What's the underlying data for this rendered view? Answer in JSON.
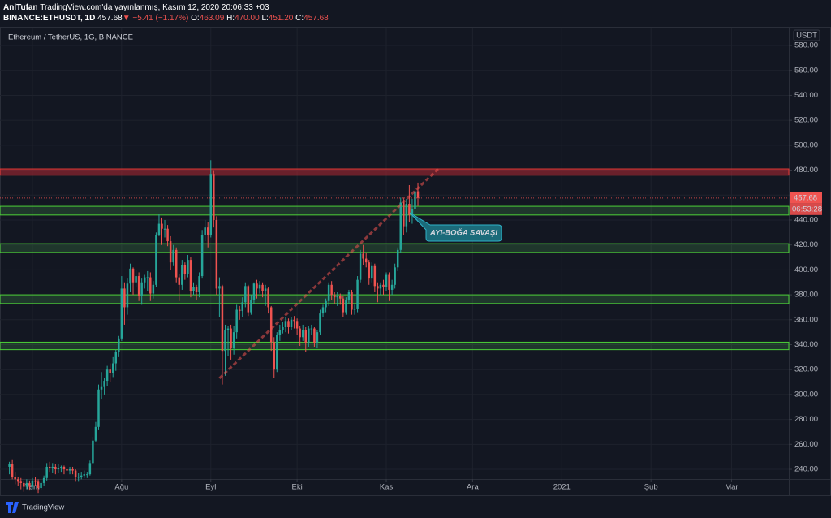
{
  "header": {
    "publisher_name": "AnlTufan",
    "publisher_text": "TradingView.com'da yayınlanmış, Kasım 12, 2020 20:06:33 +03",
    "symbol": "BINANCE:ETHUSDT, 1D",
    "last": "457.68",
    "arrow": "▼",
    "change": "−5.41 (−1.17%)",
    "ohlc": [
      {
        "label": "O:",
        "value": "463.09"
      },
      {
        "label": "H:",
        "value": "470.00"
      },
      {
        "label": "L:",
        "value": "451.20"
      },
      {
        "label": "C:",
        "value": "457.68"
      }
    ]
  },
  "footer": {
    "brand": "TradingView"
  },
  "chart_data": {
    "type": "candlestick",
    "title": "Ethereum / TetherUS, 1G, BINANCE",
    "y_unit": "USDT",
    "up_color": "#26a69a",
    "down_color": "#ef5350",
    "grid": true,
    "x": [
      0,
      1,
      2,
      3,
      4,
      5,
      6,
      7,
      8,
      9,
      10,
      11,
      12,
      13,
      14,
      15,
      16,
      17,
      18,
      19,
      20,
      21,
      22,
      23,
      24,
      25,
      26,
      27,
      28,
      29,
      30,
      31,
      32,
      33,
      34,
      35,
      36,
      37,
      38,
      39,
      40,
      41,
      42,
      43,
      44,
      45,
      46,
      47,
      48,
      49,
      50,
      51,
      52,
      53,
      54,
      55,
      56,
      57,
      58,
      59,
      60,
      61,
      62,
      63,
      64,
      65,
      66,
      67,
      68,
      69,
      70,
      71,
      72,
      73,
      74,
      75,
      76,
      77,
      78,
      79,
      80,
      81,
      82,
      83,
      84,
      85,
      86,
      87,
      88,
      89,
      90,
      91,
      92,
      93,
      94,
      95,
      96,
      97,
      98,
      99,
      100,
      101,
      102,
      103,
      104,
      105,
      106,
      107,
      108,
      109,
      110,
      111,
      112,
      113,
      114,
      115,
      116,
      117,
      118,
      119,
      120,
      121,
      122,
      123,
      124,
      125,
      126,
      127,
      128,
      129,
      130,
      131,
      132,
      133,
      134,
      135,
      136,
      137,
      138,
      139,
      140,
      141,
      142
    ],
    "open": [
      242,
      244,
      234,
      232,
      230,
      229,
      226,
      229,
      226,
      231,
      230,
      225,
      229,
      233,
      242,
      241,
      242,
      240,
      241,
      242,
      240,
      239,
      240,
      239,
      234,
      234,
      235,
      236,
      236,
      245,
      263,
      274,
      304,
      306,
      311,
      320,
      317,
      325,
      334,
      345,
      385,
      370,
      389,
      401,
      390,
      395,
      379,
      390,
      394,
      394,
      381,
      388,
      428,
      437,
      433,
      433,
      423,
      406,
      416,
      394,
      388,
      404,
      397,
      408,
      383,
      386,
      382,
      395,
      428,
      434,
      428,
      477,
      440,
      385,
      387,
      335,
      352,
      353,
      337,
      350,
      368,
      367,
      374,
      387,
      366,
      376,
      389,
      385,
      388,
      383,
      385,
      370,
      342,
      320,
      348,
      352,
      354,
      359,
      354,
      360,
      359,
      353,
      346,
      352,
      341,
      353,
      353,
      341,
      350,
      365,
      370,
      375,
      388,
      380,
      378,
      379,
      377,
      366,
      376,
      382,
      368,
      369,
      392,
      413,
      409,
      406,
      393,
      403,
      387,
      385,
      388,
      386,
      396,
      384,
      388,
      402,
      416,
      454,
      435,
      453,
      444,
      449,
      463.09
    ],
    "high": [
      246,
      248,
      238,
      234,
      233,
      231,
      232,
      231,
      233,
      234,
      232,
      231,
      235,
      245,
      246,
      245,
      244,
      244,
      243,
      243,
      242,
      242,
      242,
      240,
      237,
      238,
      239,
      238,
      247,
      266,
      278,
      308,
      318,
      313,
      323,
      325,
      330,
      336,
      347,
      395,
      390,
      393,
      405,
      402,
      400,
      398,
      393,
      396,
      399,
      398,
      391,
      430,
      445,
      442,
      440,
      436,
      427,
      420,
      418,
      397,
      408,
      406,
      412,
      410,
      390,
      388,
      398,
      432,
      440,
      438,
      488,
      480,
      443,
      394,
      388,
      356,
      355,
      356,
      355,
      372,
      371,
      378,
      390,
      388,
      380,
      390,
      392,
      391,
      390,
      388,
      386,
      371,
      346,
      350,
      356,
      358,
      362,
      361,
      362,
      363,
      361,
      355,
      356,
      354,
      355,
      356,
      354,
      352,
      368,
      372,
      377,
      390,
      391,
      382,
      382,
      381,
      379,
      378,
      384,
      384,
      372,
      395,
      416,
      420,
      414,
      408,
      406,
      405,
      390,
      390,
      392,
      398,
      398,
      392,
      405,
      418,
      458,
      458,
      457,
      468,
      457,
      467,
      470.0
    ],
    "low": [
      236,
      232,
      228,
      227,
      224,
      222,
      224,
      223,
      224,
      227,
      221,
      223,
      227,
      231,
      238,
      237,
      236,
      237,
      238,
      236,
      236,
      236,
      236,
      230,
      230,
      232,
      233,
      233,
      235,
      244,
      262,
      272,
      296,
      300,
      307,
      310,
      314,
      319,
      330,
      343,
      356,
      364,
      382,
      380,
      386,
      375,
      372,
      385,
      383,
      375,
      377,
      386,
      427,
      420,
      426,
      419,
      400,
      403,
      390,
      375,
      384,
      392,
      394,
      378,
      380,
      376,
      378,
      393,
      423,
      418,
      426,
      434,
      380,
      362,
      308,
      315,
      331,
      328,
      332,
      345,
      360,
      362,
      370,
      363,
      364,
      373,
      377,
      381,
      378,
      371,
      365,
      335,
      313,
      318,
      343,
      349,
      350,
      349,
      352,
      353,
      348,
      339,
      343,
      334,
      338,
      348,
      338,
      337,
      348,
      362,
      366,
      371,
      376,
      373,
      371,
      372,
      362,
      364,
      373,
      364,
      364,
      366,
      390,
      404,
      402,
      388,
      390,
      382,
      374,
      380,
      380,
      383,
      375,
      380,
      385,
      399,
      414,
      428,
      430,
      438,
      437,
      445,
      451.2
    ],
    "close": [
      244,
      234,
      232,
      230,
      229,
      226,
      229,
      226,
      231,
      230,
      225,
      229,
      233,
      242,
      241,
      242,
      240,
      241,
      242,
      240,
      239,
      240,
      239,
      234,
      234,
      235,
      236,
      236,
      245,
      263,
      274,
      304,
      306,
      311,
      320,
      317,
      325,
      334,
      345,
      385,
      370,
      389,
      401,
      390,
      395,
      379,
      390,
      394,
      394,
      381,
      388,
      428,
      437,
      433,
      433,
      423,
      406,
      416,
      394,
      388,
      404,
      397,
      408,
      383,
      386,
      382,
      395,
      428,
      434,
      428,
      477,
      440,
      385,
      387,
      335,
      352,
      353,
      337,
      350,
      368,
      367,
      374,
      387,
      366,
      376,
      389,
      385,
      388,
      383,
      385,
      370,
      342,
      320,
      348,
      352,
      354,
      359,
      354,
      360,
      359,
      353,
      346,
      352,
      341,
      353,
      353,
      341,
      350,
      365,
      370,
      375,
      388,
      380,
      378,
      379,
      377,
      366,
      376,
      382,
      368,
      369,
      392,
      413,
      409,
      406,
      393,
      403,
      387,
      385,
      388,
      386,
      396,
      384,
      388,
      402,
      416,
      454,
      435,
      453,
      444,
      449,
      463,
      457.68
    ],
    "xlim": [
      -3.27,
      270.9
    ],
    "ylim": [
      232.2,
      593.7
    ],
    "xticks": [
      {
        "value": 8,
        "label": "Tem"
      },
      {
        "value": 39,
        "label": "Ağu"
      },
      {
        "value": 70,
        "label": "Eyl"
      },
      {
        "value": 100,
        "label": "Eki"
      },
      {
        "value": 131,
        "label": "Kas"
      },
      {
        "value": 161,
        "label": "Ara"
      },
      {
        "value": 192,
        "label": "2021"
      },
      {
        "value": 223,
        "label": "Şub"
      },
      {
        "value": 251,
        "label": "Mar"
      }
    ],
    "yticks": [
      {
        "value": 240,
        "label": "240.00"
      },
      {
        "value": 260,
        "label": "260.00"
      },
      {
        "value": 280,
        "label": "280.00"
      },
      {
        "value": 300,
        "label": "300.00"
      },
      {
        "value": 320,
        "label": "320.00"
      },
      {
        "value": 340,
        "label": "340.00"
      },
      {
        "value": 360,
        "label": "360.00"
      },
      {
        "value": 380,
        "label": "380.00"
      },
      {
        "value": 400,
        "label": "400.00"
      },
      {
        "value": 420,
        "label": "420.00"
      },
      {
        "value": 440,
        "label": "440.00"
      },
      {
        "value": 460,
        "label": "460.00"
      },
      {
        "value": 480,
        "label": "480.00"
      },
      {
        "value": 500,
        "label": "500.00"
      },
      {
        "value": 520,
        "label": "520.00"
      },
      {
        "value": 540,
        "label": "540.00"
      },
      {
        "value": 560,
        "label": "560.00"
      },
      {
        "value": 580,
        "label": "580.00"
      }
    ],
    "zones": [
      {
        "color": "#b22833",
        "range": [
          476,
          481
        ]
      },
      {
        "color": "#4caf50",
        "range": [
          444,
          451
        ]
      },
      {
        "color": "#4caf50",
        "range": [
          414,
          421
        ]
      },
      {
        "color": "#4caf50",
        "range": [
          373,
          380
        ]
      },
      {
        "color": "#4caf50",
        "range": [
          336,
          342
        ]
      }
    ],
    "trendline": {
      "color": "#ef5350",
      "x": [
        73,
        149
      ],
      "y": [
        313,
        481
      ]
    },
    "countdown": "06:53:28",
    "annotation": {
      "text": "AYI-BOĞA SAVAŞI",
      "color": "#1b6b7a"
    }
  }
}
